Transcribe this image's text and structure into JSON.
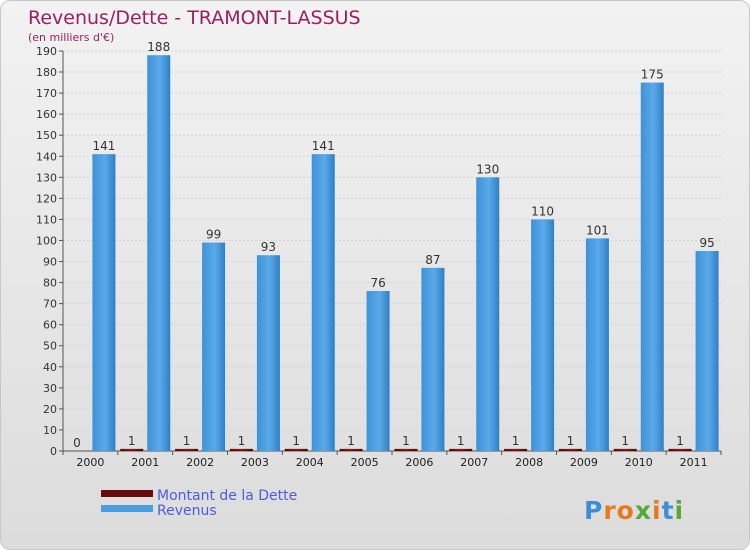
{
  "chart_data": {
    "type": "bar",
    "title": "Revenus/Dette - TRAMONT-LASSUS",
    "subtitle": "(en milliers d'€)",
    "categories": [
      "2000",
      "2001",
      "2002",
      "2003",
      "2004",
      "2005",
      "2006",
      "2007",
      "2008",
      "2009",
      "2010",
      "2011"
    ],
    "series": [
      {
        "name": "Montant de la Dette",
        "color": "#6b0a0a",
        "values": [
          0,
          1,
          1,
          1,
          1,
          1,
          1,
          1,
          1,
          1,
          1,
          1
        ]
      },
      {
        "name": "Revenus",
        "color": "#4a9ee0",
        "values": [
          141,
          188,
          99,
          93,
          141,
          76,
          87,
          130,
          110,
          101,
          175,
          95
        ]
      }
    ],
    "ylim": [
      0,
      190
    ],
    "ytick_step": 10,
    "grid": true,
    "legend": "bottom-left"
  },
  "brand": {
    "text": "Proxiti"
  }
}
